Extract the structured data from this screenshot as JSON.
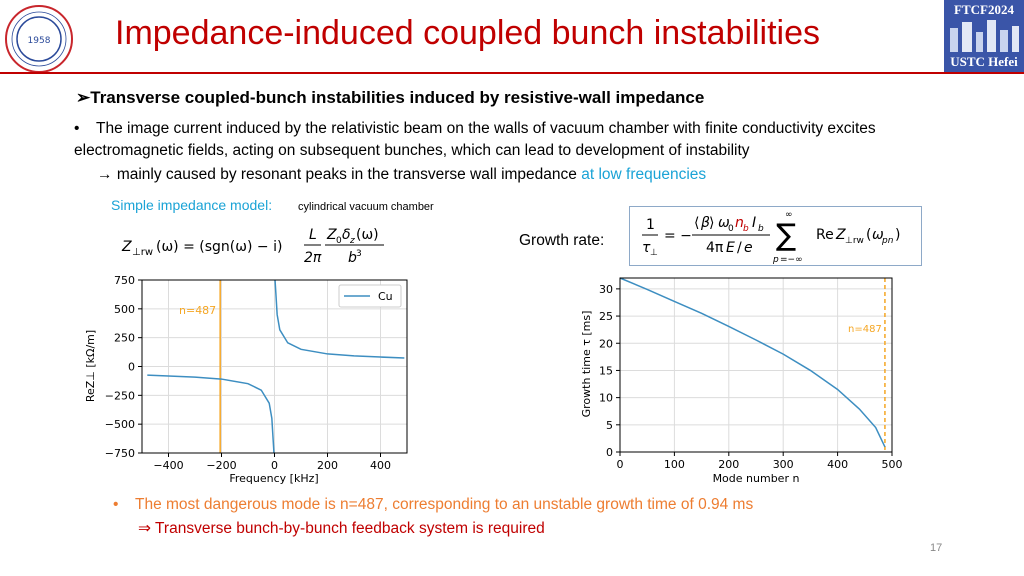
{
  "slide": {
    "title": "Impedance-induced coupled bunch instabilities",
    "page_number": "17",
    "logo_right_top": "FTCF2024",
    "logo_right_bottom": "USTC Hefei",
    "logo_left_year": "1958"
  },
  "heading": {
    "marker": "➢",
    "text": "Transverse coupled-bunch instabilities induced by resistive-wall impedance"
  },
  "bullet": {
    "marker": "•",
    "text": "The image current induced by the relativistic beam on the walls of vacuum chamber with finite conductivity excites electromagnetic fields, acting on subsequent bunches, which can lead to development of instability"
  },
  "arrow_line": {
    "arrow": "→",
    "text": "mainly caused by resonant peaks in the transverse wall impedance",
    "highlight": "at low frequencies"
  },
  "model": {
    "label": "Simple impedance model:",
    "note": "cylindrical vacuum chamber"
  },
  "growth_rate": {
    "label": "Growth rate:"
  },
  "conclusion": {
    "line1": "The most dangerous mode is n=487, corresponding to an unstable growth time of 0.94 ms",
    "line2": "Transverse bunch-by-bunch feedback system is required",
    "marker": "•",
    "arrow": "⇒"
  },
  "colors": {
    "title_red": "#c00000",
    "curve_blue": "#3d8ec1",
    "marker_orange": "#f5a623",
    "highlight_cyan": "#1aa3d6",
    "conclusion_orange": "#ed7d31"
  },
  "chart_data": [
    {
      "type": "line",
      "xlabel": "Frequency [kHz]",
      "ylabel": "ReZ⊥ [kΩ/m]",
      "xlim": [
        -500,
        500
      ],
      "ylim": [
        -750,
        750
      ],
      "xticks": [
        "−400",
        "−200",
        "0",
        "200",
        "400"
      ],
      "yticks": [
        "750",
        "500",
        "250",
        "0",
        "−250",
        "−500",
        "−750"
      ],
      "grid": true,
      "legend_position": "top-right",
      "series": [
        {
          "name": "Cu",
          "x": [
            -480,
            -400,
            -300,
            -200,
            -100,
            -50,
            -20,
            -10,
            -5,
            -2,
            2,
            5,
            10,
            20,
            50,
            100,
            200,
            300,
            400,
            490
          ],
          "values": [
            -75,
            -82,
            -92,
            -109,
            -149,
            -205,
            -318,
            -450,
            -640,
            -750,
            750,
            640,
            450,
            318,
            205,
            149,
            109,
            92,
            82,
            74
          ]
        }
      ],
      "marker_line": {
        "x": -205,
        "label": "n=487"
      }
    },
    {
      "type": "line",
      "xlabel": "Mode number n",
      "ylabel": "Growth time τ [ms]",
      "xlim": [
        0,
        500
      ],
      "ylim": [
        0,
        32
      ],
      "xticks": [
        "0",
        "100",
        "200",
        "300",
        "400",
        "500"
      ],
      "yticks": [
        "0",
        "5",
        "10",
        "15",
        "20",
        "25",
        "30"
      ],
      "grid": true,
      "series": [
        {
          "name": "",
          "x": [
            0,
            50,
            100,
            150,
            200,
            250,
            300,
            350,
            400,
            440,
            470,
            487
          ],
          "values": [
            32.0,
            29.9,
            27.7,
            25.5,
            23.1,
            20.6,
            18.0,
            15.0,
            11.5,
            7.9,
            4.5,
            0.94
          ]
        }
      ],
      "marker_line": {
        "x": 487,
        "label": "n=487"
      }
    }
  ]
}
